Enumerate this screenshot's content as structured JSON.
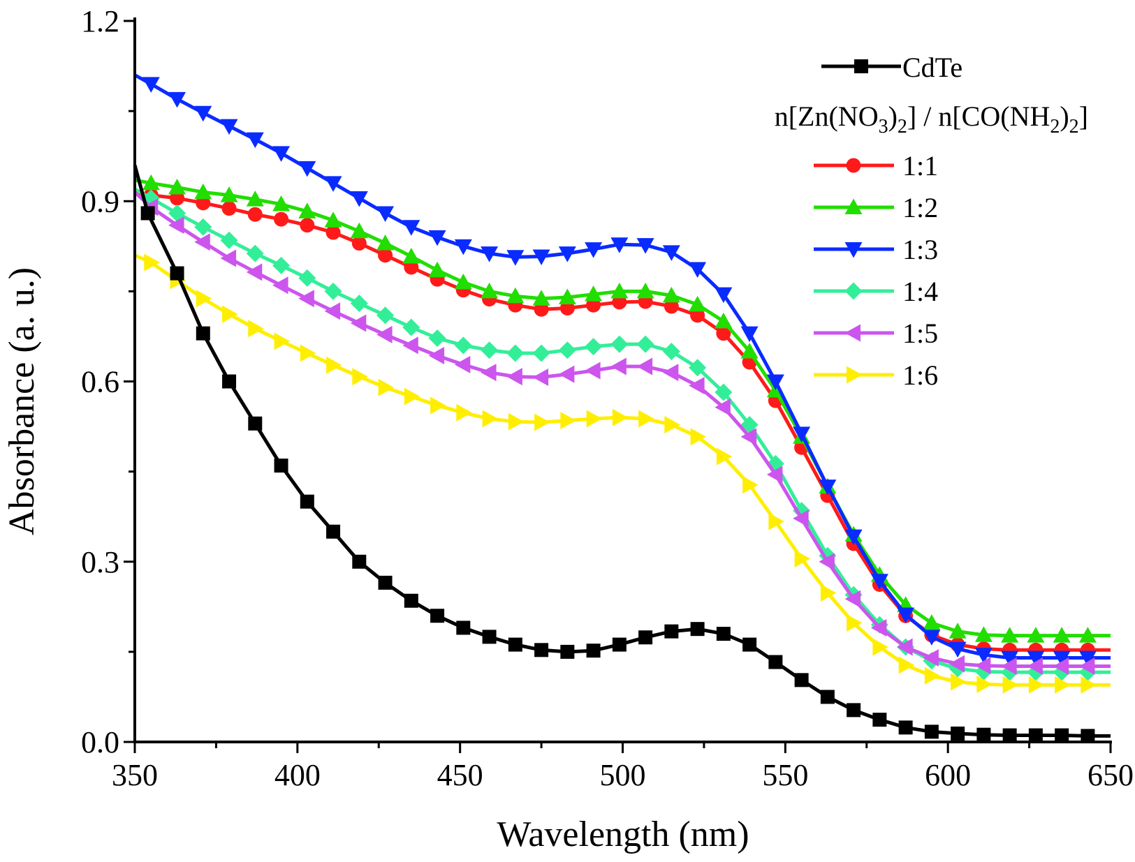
{
  "chart_data": {
    "type": "line",
    "title": "",
    "xlabel": "Wavelength (nm)",
    "ylabel": "Absorbance (a. u.)",
    "xlim": [
      350,
      650
    ],
    "ylim": [
      0.0,
      1.2
    ],
    "x_ticks": [
      350,
      400,
      450,
      500,
      550,
      600,
      650
    ],
    "x_tick_labels": [
      "350",
      "400",
      "450",
      "500",
      "550",
      "600",
      "650"
    ],
    "y_ticks": [
      0.0,
      0.3,
      0.6,
      0.9,
      1.2
    ],
    "y_tick_labels": [
      "0.0",
      "0.3",
      "0.6",
      "0.9",
      "1.2"
    ],
    "grid": false,
    "legend_position": "top-right",
    "legend_subtitle": {
      "prefix": "n[Zn(NO",
      "sub1": "3",
      "mid1": ")",
      "sub2": "2",
      "mid2": "] / n[CO(NH",
      "sub3": "2",
      "mid3": ")",
      "sub4": "2",
      "suffix": "]"
    },
    "series": [
      {
        "name": "CdTe",
        "color": "#000000",
        "marker": "square",
        "points": [
          [
            350,
            0.96
          ],
          [
            354,
            0.88
          ],
          [
            363,
            0.78
          ],
          [
            371,
            0.68
          ],
          [
            379,
            0.6
          ],
          [
            387,
            0.53
          ],
          [
            395,
            0.46
          ],
          [
            403,
            0.4
          ],
          [
            411,
            0.35
          ],
          [
            419,
            0.3
          ],
          [
            427,
            0.265
          ],
          [
            435,
            0.235
          ],
          [
            443,
            0.21
          ],
          [
            451,
            0.19
          ],
          [
            459,
            0.175
          ],
          [
            467,
            0.162
          ],
          [
            475,
            0.153
          ],
          [
            483,
            0.15
          ],
          [
            491,
            0.152
          ],
          [
            499,
            0.162
          ],
          [
            507,
            0.174
          ],
          [
            515,
            0.184
          ],
          [
            523,
            0.188
          ],
          [
            531,
            0.18
          ],
          [
            539,
            0.162
          ],
          [
            547,
            0.133
          ],
          [
            555,
            0.103
          ],
          [
            563,
            0.075
          ],
          [
            571,
            0.053
          ],
          [
            579,
            0.037
          ],
          [
            587,
            0.024
          ],
          [
            595,
            0.017
          ],
          [
            603,
            0.014
          ],
          [
            611,
            0.012
          ],
          [
            619,
            0.011
          ],
          [
            627,
            0.011
          ],
          [
            635,
            0.011
          ],
          [
            643,
            0.01
          ],
          [
            650,
            0.01
          ]
        ]
      },
      {
        "name": "1:1",
        "color": "#ff1a1a",
        "marker": "circle",
        "points": [
          [
            350,
            0.915
          ],
          [
            355,
            0.91
          ],
          [
            363,
            0.905
          ],
          [
            371,
            0.897
          ],
          [
            379,
            0.888
          ],
          [
            387,
            0.878
          ],
          [
            395,
            0.87
          ],
          [
            403,
            0.86
          ],
          [
            411,
            0.848
          ],
          [
            419,
            0.83
          ],
          [
            427,
            0.81
          ],
          [
            435,
            0.79
          ],
          [
            443,
            0.77
          ],
          [
            451,
            0.752
          ],
          [
            459,
            0.737
          ],
          [
            467,
            0.727
          ],
          [
            475,
            0.72
          ],
          [
            483,
            0.722
          ],
          [
            491,
            0.727
          ],
          [
            499,
            0.732
          ],
          [
            507,
            0.733
          ],
          [
            515,
            0.725
          ],
          [
            523,
            0.71
          ],
          [
            531,
            0.68
          ],
          [
            539,
            0.632
          ],
          [
            547,
            0.568
          ],
          [
            555,
            0.49
          ],
          [
            563,
            0.41
          ],
          [
            571,
            0.33
          ],
          [
            579,
            0.262
          ],
          [
            587,
            0.21
          ],
          [
            595,
            0.178
          ],
          [
            603,
            0.162
          ],
          [
            611,
            0.155
          ],
          [
            619,
            0.153
          ],
          [
            627,
            0.153
          ],
          [
            635,
            0.153
          ],
          [
            643,
            0.153
          ],
          [
            650,
            0.153
          ]
        ]
      },
      {
        "name": "1:2",
        "color": "#22dd00",
        "marker": "triangle-up",
        "points": [
          [
            350,
            0.935
          ],
          [
            355,
            0.93
          ],
          [
            363,
            0.923
          ],
          [
            371,
            0.915
          ],
          [
            379,
            0.91
          ],
          [
            387,
            0.903
          ],
          [
            395,
            0.895
          ],
          [
            403,
            0.883
          ],
          [
            411,
            0.868
          ],
          [
            419,
            0.85
          ],
          [
            427,
            0.83
          ],
          [
            435,
            0.808
          ],
          [
            443,
            0.785
          ],
          [
            451,
            0.765
          ],
          [
            459,
            0.75
          ],
          [
            467,
            0.742
          ],
          [
            475,
            0.738
          ],
          [
            483,
            0.74
          ],
          [
            491,
            0.745
          ],
          [
            499,
            0.75
          ],
          [
            507,
            0.75
          ],
          [
            515,
            0.743
          ],
          [
            523,
            0.728
          ],
          [
            531,
            0.7
          ],
          [
            539,
            0.65
          ],
          [
            547,
            0.585
          ],
          [
            555,
            0.508
          ],
          [
            563,
            0.425
          ],
          [
            571,
            0.345
          ],
          [
            579,
            0.278
          ],
          [
            587,
            0.228
          ],
          [
            595,
            0.198
          ],
          [
            603,
            0.184
          ],
          [
            611,
            0.178
          ],
          [
            619,
            0.177
          ],
          [
            627,
            0.177
          ],
          [
            635,
            0.177
          ],
          [
            643,
            0.177
          ],
          [
            650,
            0.177
          ]
        ]
      },
      {
        "name": "1:3",
        "color": "#0a2bff",
        "marker": "triangle-down",
        "points": [
          [
            350,
            1.11
          ],
          [
            355,
            1.095
          ],
          [
            363,
            1.07
          ],
          [
            371,
            1.047
          ],
          [
            379,
            1.025
          ],
          [
            387,
            1.003
          ],
          [
            395,
            0.98
          ],
          [
            403,
            0.955
          ],
          [
            411,
            0.93
          ],
          [
            419,
            0.905
          ],
          [
            427,
            0.88
          ],
          [
            435,
            0.857
          ],
          [
            443,
            0.84
          ],
          [
            451,
            0.825
          ],
          [
            459,
            0.813
          ],
          [
            467,
            0.807
          ],
          [
            475,
            0.808
          ],
          [
            483,
            0.813
          ],
          [
            491,
            0.82
          ],
          [
            499,
            0.828
          ],
          [
            507,
            0.827
          ],
          [
            515,
            0.815
          ],
          [
            523,
            0.787
          ],
          [
            531,
            0.745
          ],
          [
            539,
            0.68
          ],
          [
            547,
            0.6
          ],
          [
            555,
            0.513
          ],
          [
            563,
            0.425
          ],
          [
            571,
            0.342
          ],
          [
            579,
            0.268
          ],
          [
            587,
            0.212
          ],
          [
            595,
            0.175
          ],
          [
            603,
            0.155
          ],
          [
            611,
            0.145
          ],
          [
            619,
            0.14
          ],
          [
            627,
            0.14
          ],
          [
            635,
            0.14
          ],
          [
            643,
            0.14
          ],
          [
            650,
            0.14
          ]
        ]
      },
      {
        "name": "1:4",
        "color": "#33ee99",
        "marker": "diamond",
        "points": [
          [
            350,
            0.92
          ],
          [
            355,
            0.905
          ],
          [
            363,
            0.88
          ],
          [
            371,
            0.857
          ],
          [
            379,
            0.835
          ],
          [
            387,
            0.813
          ],
          [
            395,
            0.793
          ],
          [
            403,
            0.772
          ],
          [
            411,
            0.75
          ],
          [
            419,
            0.73
          ],
          [
            427,
            0.71
          ],
          [
            435,
            0.69
          ],
          [
            443,
            0.672
          ],
          [
            451,
            0.66
          ],
          [
            459,
            0.652
          ],
          [
            467,
            0.647
          ],
          [
            475,
            0.647
          ],
          [
            483,
            0.652
          ],
          [
            491,
            0.658
          ],
          [
            499,
            0.662
          ],
          [
            507,
            0.662
          ],
          [
            515,
            0.65
          ],
          [
            523,
            0.623
          ],
          [
            531,
            0.582
          ],
          [
            539,
            0.528
          ],
          [
            547,
            0.463
          ],
          [
            555,
            0.385
          ],
          [
            563,
            0.31
          ],
          [
            571,
            0.245
          ],
          [
            579,
            0.195
          ],
          [
            587,
            0.158
          ],
          [
            595,
            0.135
          ],
          [
            603,
            0.122
          ],
          [
            611,
            0.117
          ],
          [
            619,
            0.116
          ],
          [
            627,
            0.116
          ],
          [
            635,
            0.116
          ],
          [
            643,
            0.116
          ],
          [
            650,
            0.116
          ]
        ]
      },
      {
        "name": "1:5",
        "color": "#cc55ee",
        "marker": "triangle-left",
        "points": [
          [
            350,
            0.915
          ],
          [
            355,
            0.89
          ],
          [
            363,
            0.86
          ],
          [
            371,
            0.832
          ],
          [
            379,
            0.805
          ],
          [
            387,
            0.782
          ],
          [
            395,
            0.76
          ],
          [
            403,
            0.738
          ],
          [
            411,
            0.717
          ],
          [
            419,
            0.697
          ],
          [
            427,
            0.678
          ],
          [
            435,
            0.66
          ],
          [
            443,
            0.643
          ],
          [
            451,
            0.628
          ],
          [
            459,
            0.615
          ],
          [
            467,
            0.608
          ],
          [
            475,
            0.607
          ],
          [
            483,
            0.612
          ],
          [
            491,
            0.618
          ],
          [
            499,
            0.625
          ],
          [
            507,
            0.625
          ],
          [
            515,
            0.615
          ],
          [
            523,
            0.593
          ],
          [
            531,
            0.557
          ],
          [
            539,
            0.508
          ],
          [
            547,
            0.445
          ],
          [
            555,
            0.372
          ],
          [
            563,
            0.3
          ],
          [
            571,
            0.238
          ],
          [
            579,
            0.19
          ],
          [
            587,
            0.158
          ],
          [
            595,
            0.14
          ],
          [
            603,
            0.13
          ],
          [
            611,
            0.127
          ],
          [
            619,
            0.126
          ],
          [
            627,
            0.126
          ],
          [
            635,
            0.126
          ],
          [
            643,
            0.126
          ],
          [
            650,
            0.126
          ]
        ]
      },
      {
        "name": "1:6",
        "color": "#ffee00",
        "marker": "triangle-right",
        "points": [
          [
            350,
            0.81
          ],
          [
            355,
            0.798
          ],
          [
            363,
            0.768
          ],
          [
            371,
            0.738
          ],
          [
            379,
            0.712
          ],
          [
            387,
            0.688
          ],
          [
            395,
            0.667
          ],
          [
            403,
            0.647
          ],
          [
            411,
            0.627
          ],
          [
            419,
            0.608
          ],
          [
            427,
            0.59
          ],
          [
            435,
            0.575
          ],
          [
            443,
            0.56
          ],
          [
            451,
            0.548
          ],
          [
            459,
            0.538
          ],
          [
            467,
            0.533
          ],
          [
            475,
            0.532
          ],
          [
            483,
            0.535
          ],
          [
            491,
            0.538
          ],
          [
            499,
            0.54
          ],
          [
            507,
            0.538
          ],
          [
            515,
            0.528
          ],
          [
            523,
            0.508
          ],
          [
            531,
            0.475
          ],
          [
            539,
            0.428
          ],
          [
            547,
            0.367
          ],
          [
            555,
            0.305
          ],
          [
            563,
            0.248
          ],
          [
            571,
            0.198
          ],
          [
            579,
            0.158
          ],
          [
            587,
            0.128
          ],
          [
            595,
            0.11
          ],
          [
            603,
            0.1
          ],
          [
            611,
            0.096
          ],
          [
            619,
            0.095
          ],
          [
            627,
            0.095
          ],
          [
            635,
            0.095
          ],
          [
            643,
            0.095
          ],
          [
            650,
            0.095
          ]
        ]
      }
    ]
  }
}
